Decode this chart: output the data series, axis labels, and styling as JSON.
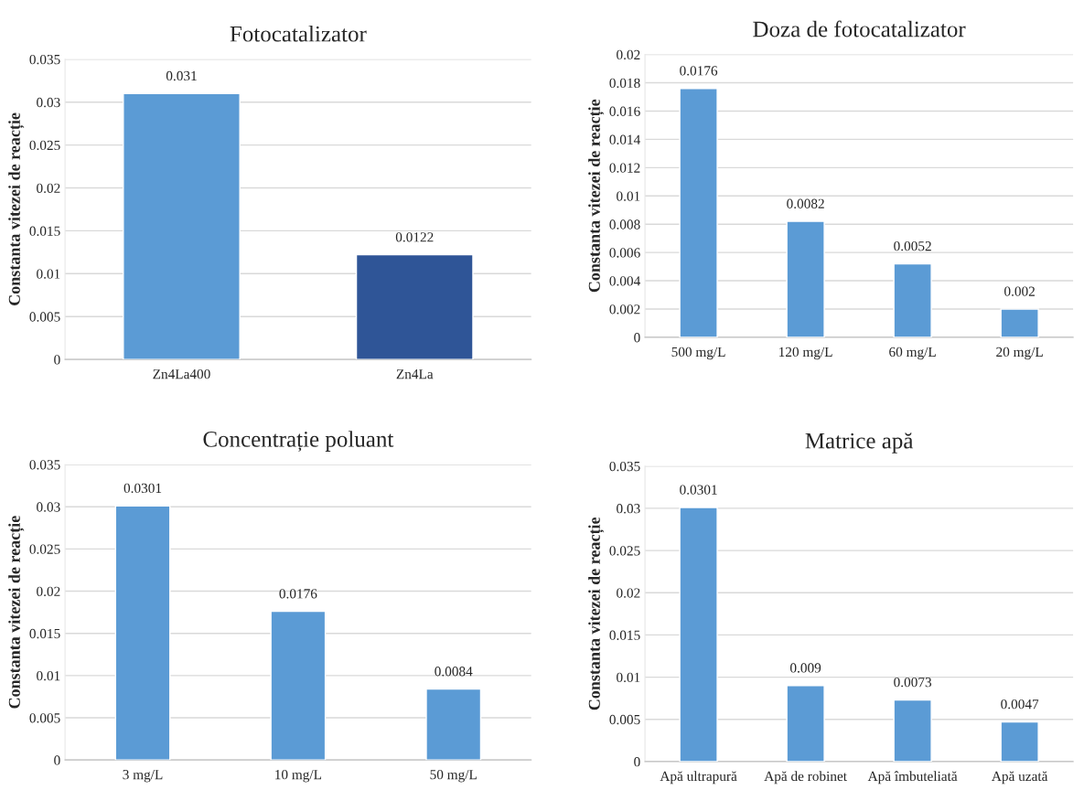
{
  "chart_data": [
    {
      "type": "bar",
      "title": "Fotocatalizator",
      "ylabel": "Constanta vitezei de reacție",
      "categories": [
        "Zn4La400",
        "Zn4La"
      ],
      "values": [
        0.031,
        0.0122
      ],
      "colors": [
        "#5b9bd5",
        "#2f5597"
      ],
      "ylim": [
        0,
        0.035
      ],
      "yticks": [
        0,
        0.005,
        0.01,
        0.015,
        0.02,
        0.025,
        0.03,
        0.035
      ],
      "grid": "y",
      "data_labels": true
    },
    {
      "type": "bar",
      "title": "Doza de fotocatalizator",
      "ylabel": "Constanta vitezei de reacție",
      "categories": [
        "500 mg/L",
        "120 mg/L",
        "60 mg/L",
        "20 mg/L"
      ],
      "values": [
        0.0176,
        0.0082,
        0.0052,
        0.002
      ],
      "color": "#5b9bd5",
      "ylim": [
        0,
        0.02
      ],
      "yticks": [
        0,
        0.002,
        0.004,
        0.006,
        0.008,
        0.01,
        0.012,
        0.014,
        0.016,
        0.018,
        0.02
      ],
      "grid": "y",
      "data_labels": true
    },
    {
      "type": "bar",
      "title": "Concentrație poluant",
      "ylabel": "Constanta vitezei de reacție",
      "categories": [
        "3 mg/L",
        "10 mg/L",
        "50 mg/L"
      ],
      "values": [
        0.0301,
        0.0176,
        0.0084
      ],
      "color": "#5b9bd5",
      "ylim": [
        0,
        0.035
      ],
      "yticks": [
        0,
        0.005,
        0.01,
        0.015,
        0.02,
        0.025,
        0.03,
        0.035
      ],
      "grid": "y",
      "data_labels": true
    },
    {
      "type": "bar",
      "title": "Matrice apă",
      "ylabel": "Constanta vitezei de reacție",
      "categories": [
        "Apă ultrapură",
        "Apă de robinet",
        "Apă îmbuteliată",
        "Apă uzată"
      ],
      "values": [
        0.0301,
        0.009,
        0.0073,
        0.0047
      ],
      "color": "#5b9bd5",
      "ylim": [
        0,
        0.035
      ],
      "yticks": [
        0,
        0.005,
        0.01,
        0.015,
        0.02,
        0.025,
        0.03,
        0.035
      ],
      "grid": "y",
      "data_labels": true
    }
  ]
}
